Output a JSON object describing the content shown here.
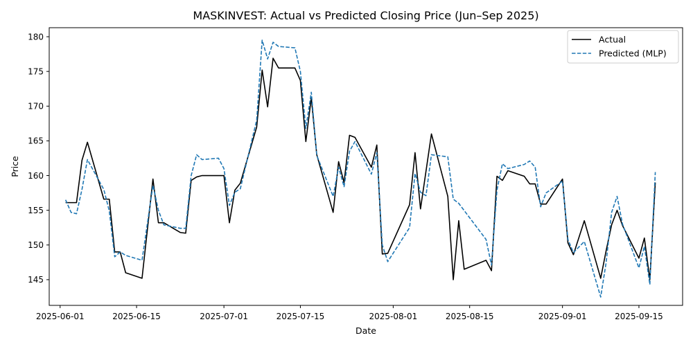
{
  "chart_data": {
    "type": "line",
    "title": "MASKINVEST: Actual vs Predicted Closing Price (Jun–Sep 2025)",
    "xlabel": "Date",
    "ylabel": "Price",
    "xlim": [
      "2025-05-30",
      "2025-09-23"
    ],
    "ylim": [
      141.3,
      181.3
    ],
    "x_ticks": [
      {
        "date": "2025-06-01",
        "label": "2025-06-01"
      },
      {
        "date": "2025-06-15",
        "label": "2025-06-15"
      },
      {
        "date": "2025-07-01",
        "label": "2025-07-01"
      },
      {
        "date": "2025-07-15",
        "label": "2025-07-15"
      },
      {
        "date": "2025-08-01",
        "label": "2025-08-01"
      },
      {
        "date": "2025-08-15",
        "label": "2025-08-15"
      },
      {
        "date": "2025-09-01",
        "label": "2025-09-01"
      },
      {
        "date": "2025-09-15",
        "label": "2025-09-15"
      }
    ],
    "y_ticks": [
      145,
      150,
      155,
      160,
      165,
      170,
      175,
      180
    ],
    "grid": false,
    "legend_position": "top-right",
    "series": [
      {
        "name": "Actual",
        "color": "#000000",
        "style": "solid",
        "points": [
          [
            "2025-06-02",
            156.1
          ],
          [
            "2025-06-03",
            156.1
          ],
          [
            "2025-06-04",
            156.1
          ],
          [
            "2025-06-05",
            162.2
          ],
          [
            "2025-06-06",
            164.8
          ],
          [
            "2025-06-09",
            156.6
          ],
          [
            "2025-06-10",
            156.6
          ],
          [
            "2025-06-11",
            149.0
          ],
          [
            "2025-06-12",
            149.0
          ],
          [
            "2025-06-13",
            146.0
          ],
          [
            "2025-06-16",
            145.2
          ],
          [
            "2025-06-18",
            159.5
          ],
          [
            "2025-06-19",
            153.2
          ],
          [
            "2025-06-20",
            153.2
          ],
          [
            "2025-06-23",
            151.8
          ],
          [
            "2025-06-24",
            151.7
          ],
          [
            "2025-06-25",
            159.3
          ],
          [
            "2025-06-26",
            159.8
          ],
          [
            "2025-06-27",
            160.0
          ],
          [
            "2025-06-30",
            160.0
          ],
          [
            "2025-07-01",
            160.0
          ],
          [
            "2025-07-02",
            153.2
          ],
          [
            "2025-07-03",
            157.9
          ],
          [
            "2025-07-04",
            158.9
          ],
          [
            "2025-07-07",
            167.0
          ],
          [
            "2025-07-08",
            175.2
          ],
          [
            "2025-07-09",
            169.9
          ],
          [
            "2025-07-10",
            176.9
          ],
          [
            "2025-07-11",
            175.5
          ],
          [
            "2025-07-14",
            175.5
          ],
          [
            "2025-07-15",
            173.7
          ],
          [
            "2025-07-16",
            164.9
          ],
          [
            "2025-07-17",
            171.2
          ],
          [
            "2025-07-18",
            163.0
          ],
          [
            "2025-07-21",
            154.7
          ],
          [
            "2025-07-22",
            162.0
          ],
          [
            "2025-07-23",
            159.0
          ],
          [
            "2025-07-24",
            165.8
          ],
          [
            "2025-07-25",
            165.5
          ],
          [
            "2025-07-28",
            161.2
          ],
          [
            "2025-07-29",
            164.4
          ],
          [
            "2025-07-30",
            148.7
          ],
          [
            "2025-07-31",
            148.8
          ],
          [
            "2025-08-04",
            155.8
          ],
          [
            "2025-08-05",
            163.3
          ],
          [
            "2025-08-06",
            155.2
          ],
          [
            "2025-08-08",
            166.0
          ],
          [
            "2025-08-11",
            157.0
          ],
          [
            "2025-08-12",
            145.0
          ],
          [
            "2025-08-13",
            153.5
          ],
          [
            "2025-08-14",
            146.5
          ],
          [
            "2025-08-18",
            147.8
          ],
          [
            "2025-08-19",
            146.3
          ],
          [
            "2025-08-20",
            159.9
          ],
          [
            "2025-08-21",
            159.3
          ],
          [
            "2025-08-22",
            160.7
          ],
          [
            "2025-08-25",
            159.9
          ],
          [
            "2025-08-26",
            158.8
          ],
          [
            "2025-08-27",
            158.8
          ],
          [
            "2025-08-28",
            155.9
          ],
          [
            "2025-08-29",
            155.9
          ],
          [
            "2025-09-01",
            159.5
          ],
          [
            "2025-09-02",
            150.3
          ],
          [
            "2025-09-03",
            148.6
          ],
          [
            "2025-09-05",
            153.5
          ],
          [
            "2025-09-08",
            145.2
          ],
          [
            "2025-09-09",
            149.2
          ],
          [
            "2025-09-10",
            152.9
          ],
          [
            "2025-09-11",
            155.0
          ],
          [
            "2025-09-12",
            152.8
          ],
          [
            "2025-09-15",
            148.1
          ],
          [
            "2025-09-16",
            151.0
          ],
          [
            "2025-09-17",
            145.0
          ],
          [
            "2025-09-18",
            159.0
          ]
        ]
      },
      {
        "name": "Predicted (MLP)",
        "color": "#1f77b4",
        "style": "dashed",
        "points": [
          [
            "2025-06-02",
            156.5
          ],
          [
            "2025-06-03",
            154.7
          ],
          [
            "2025-06-04",
            154.5
          ],
          [
            "2025-06-05",
            158.0
          ],
          [
            "2025-06-06",
            162.3
          ],
          [
            "2025-06-09",
            158.0
          ],
          [
            "2025-06-10",
            154.9
          ],
          [
            "2025-06-11",
            148.3
          ],
          [
            "2025-06-12",
            149.0
          ],
          [
            "2025-06-13",
            148.5
          ],
          [
            "2025-06-16",
            147.8
          ],
          [
            "2025-06-18",
            158.6
          ],
          [
            "2025-06-19",
            155.0
          ],
          [
            "2025-06-20",
            152.9
          ],
          [
            "2025-06-23",
            152.4
          ],
          [
            "2025-06-24",
            152.4
          ],
          [
            "2025-06-25",
            160.0
          ],
          [
            "2025-06-26",
            163.0
          ],
          [
            "2025-06-27",
            162.3
          ],
          [
            "2025-06-30",
            162.5
          ],
          [
            "2025-07-01",
            161.0
          ],
          [
            "2025-07-02",
            155.7
          ],
          [
            "2025-07-03",
            157.6
          ],
          [
            "2025-07-04",
            158.1
          ],
          [
            "2025-07-07",
            168.0
          ],
          [
            "2025-07-08",
            179.5
          ],
          [
            "2025-07-09",
            176.8
          ],
          [
            "2025-07-10",
            179.2
          ],
          [
            "2025-07-11",
            178.6
          ],
          [
            "2025-07-14",
            178.4
          ],
          [
            "2025-07-15",
            175.0
          ],
          [
            "2025-07-16",
            166.8
          ],
          [
            "2025-07-17",
            172.0
          ],
          [
            "2025-07-18",
            162.9
          ],
          [
            "2025-07-21",
            157.0
          ],
          [
            "2025-07-22",
            161.2
          ],
          [
            "2025-07-23",
            158.4
          ],
          [
            "2025-07-24",
            163.5
          ],
          [
            "2025-07-25",
            164.9
          ],
          [
            "2025-07-28",
            160.2
          ],
          [
            "2025-07-29",
            163.3
          ],
          [
            "2025-07-30",
            150.0
          ],
          [
            "2025-07-31",
            147.6
          ],
          [
            "2025-08-04",
            152.5
          ],
          [
            "2025-08-05",
            160.3
          ],
          [
            "2025-08-06",
            157.6
          ],
          [
            "2025-08-07",
            157.1
          ],
          [
            "2025-08-08",
            163.0
          ],
          [
            "2025-08-11",
            162.7
          ],
          [
            "2025-08-12",
            156.6
          ],
          [
            "2025-08-13",
            156.0
          ],
          [
            "2025-08-18",
            150.8
          ],
          [
            "2025-08-19",
            147.1
          ],
          [
            "2025-08-20",
            157.9
          ],
          [
            "2025-08-21",
            161.7
          ],
          [
            "2025-08-22",
            161.0
          ],
          [
            "2025-08-25",
            161.6
          ],
          [
            "2025-08-26",
            162.1
          ],
          [
            "2025-08-27",
            161.2
          ],
          [
            "2025-08-28",
            155.5
          ],
          [
            "2025-08-29",
            157.5
          ],
          [
            "2025-09-01",
            159.2
          ],
          [
            "2025-09-02",
            150.8
          ],
          [
            "2025-09-03",
            148.9
          ],
          [
            "2025-09-05",
            150.5
          ],
          [
            "2025-09-08",
            142.5
          ],
          [
            "2025-09-09",
            147.5
          ],
          [
            "2025-09-10",
            154.7
          ],
          [
            "2025-09-11",
            157.0
          ],
          [
            "2025-09-12",
            153.0
          ],
          [
            "2025-09-15",
            146.7
          ],
          [
            "2025-09-16",
            149.8
          ],
          [
            "2025-09-17",
            144.3
          ],
          [
            "2025-09-18",
            160.5
          ]
        ]
      }
    ]
  }
}
